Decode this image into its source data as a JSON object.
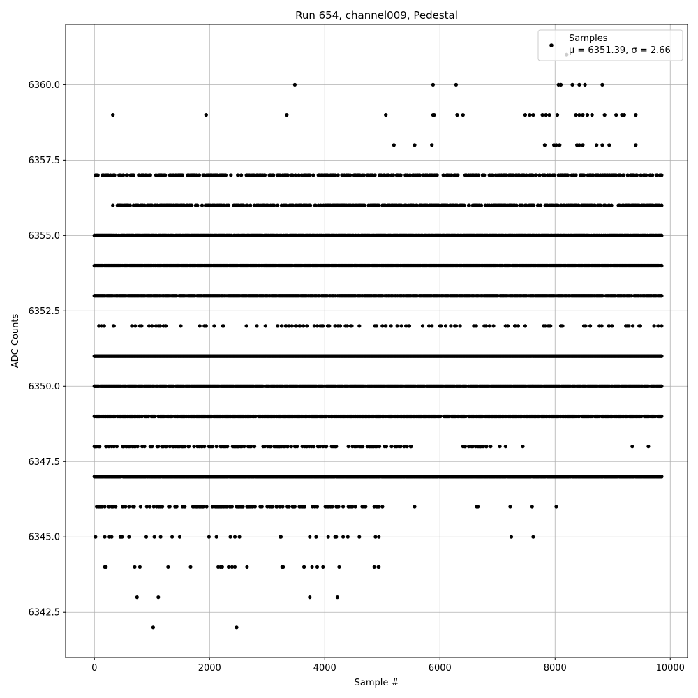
{
  "chart_data": {
    "type": "scatter",
    "title": "Run 654, channel009, Pedestal",
    "xlabel": "Sample #",
    "ylabel": "ADC Counts",
    "xlim": [
      -500,
      10300
    ],
    "ylim": [
      6341.0,
      6362.0
    ],
    "xticks": [
      0,
      2000,
      4000,
      6000,
      8000,
      10000
    ],
    "xtick_labels": [
      "0",
      "2000",
      "4000",
      "6000",
      "8000",
      "10000"
    ],
    "yticks": [
      6342.5,
      6345.0,
      6347.5,
      6350.0,
      6352.5,
      6355.0,
      6357.5,
      6360.0
    ],
    "ytick_labels": [
      "6342.5",
      "6345.0",
      "6347.5",
      "6350.0",
      "6352.5",
      "6355.0",
      "6357.5",
      "6360.0"
    ],
    "grid": true,
    "legend_position": "top-right",
    "marker_color": "#000000",
    "series": [
      {
        "name": "Samples",
        "stats_label": "μ = 6351.39, σ = 2.66",
        "mean": 6351.39,
        "sigma": 2.66,
        "n_samples": 9850,
        "level_x_ranges": [
          {
            "y": 6342,
            "x": [
              1020,
              2470
            ]
          },
          {
            "y": 6343,
            "x": [
              740,
              1110,
              3740,
              4220
            ]
          },
          {
            "y": 6344,
            "x": [
              [
                180,
                3280
              ],
              [
                3640,
                4940
              ]
            ]
          },
          {
            "y": 6345,
            "x": [
              [
                20,
                3240
              ],
              [
                3740,
                4940
              ],
              7240,
              7620
            ]
          },
          {
            "y": 6346,
            "x": [
              [
                40,
                5000
              ],
              5560,
              6640,
              6660,
              7220,
              7600,
              8020
            ]
          },
          {
            "y": 6347,
            "x": [
              [
                0,
                9850
              ]
            ]
          },
          {
            "y": 6348,
            "x": [
              [
                0,
                5500
              ],
              [
                6400,
                6880
              ],
              7040,
              7140,
              7440,
              9340,
              9620
            ]
          },
          {
            "y": 6349,
            "x": [
              [
                0,
                9850
              ]
            ]
          },
          {
            "y": 6350,
            "x": [
              [
                0,
                9850
              ]
            ]
          },
          {
            "y": 6351,
            "x": [
              [
                0,
                9850
              ]
            ]
          },
          {
            "y": 6352,
            "x": [
              [
                80,
                9850
              ]
            ]
          },
          {
            "y": 6353,
            "x": [
              [
                0,
                9850
              ]
            ]
          },
          {
            "y": 6354,
            "x": [
              [
                0,
                9850
              ]
            ]
          },
          {
            "y": 6355,
            "x": [
              [
                0,
                9850
              ]
            ]
          },
          {
            "y": 6356,
            "x": [
              [
                320,
                9850
              ]
            ]
          },
          {
            "y": 6357,
            "x": [
              [
                20,
                9850
              ]
            ]
          },
          {
            "y": 6358,
            "x": [
              5200,
              5560,
              5860,
              7820,
              7980,
              8020,
              8080,
              8380,
              8420,
              8480,
              8720,
              8820,
              8940,
              9400
            ]
          },
          {
            "y": 6359,
            "x": [
              320,
              1940,
              3340,
              5060,
              5880,
              5900,
              6300,
              6400,
              7480,
              7560,
              7620,
              7780,
              7840,
              7900,
              8040,
              8360,
              8420,
              8480,
              8560,
              8640,
              8860,
              9060,
              9160,
              9200,
              9400
            ]
          },
          {
            "y": 6360,
            "x": [
              3480,
              5880,
              6280,
              8060,
              8100,
              8300,
              8420,
              8520,
              8820
            ]
          },
          {
            "y": 6361,
            "x": [
              8200
            ]
          }
        ],
        "level_density": {
          "6342": 0,
          "6343": 0,
          "6344": 0.05,
          "6345": 0.06,
          "6346": 0.25,
          "6347": 0.85,
          "6348": 0.3,
          "6349": 0.7,
          "6350": 0.92,
          "6351": 1.0,
          "6352": 0.12,
          "6353": 0.85,
          "6354": 0.92,
          "6355": 0.82,
          "6356": 0.45,
          "6357": 0.32,
          "6358": 0,
          "6359": 0,
          "6360": 0,
          "6361": 0
        }
      }
    ]
  }
}
